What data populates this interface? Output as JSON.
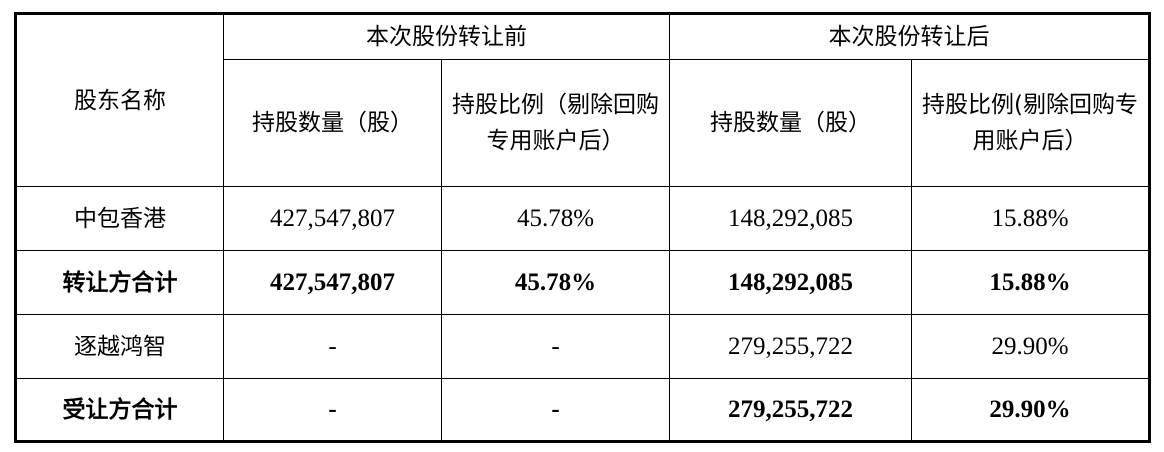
{
  "table": {
    "col_name_header": "股东名称",
    "group_before": "本次股份转让前",
    "group_after": "本次股份转让后",
    "before_shares_header": "持股数量（股）",
    "before_ratio_header": "持股比例（剔除回购专用账户后）",
    "after_shares_header": "持股数量（股）",
    "after_ratio_header": "持股比例(剔除回购专用账户后）",
    "rows": [
      {
        "name": "中包香港",
        "before_shares": "427,547,807",
        "before_ratio": "45.78%",
        "after_shares": "148,292,085",
        "after_ratio": "15.88%",
        "bold": false
      },
      {
        "name": "转让方合计",
        "before_shares": "427,547,807",
        "before_ratio": "45.78%",
        "after_shares": "148,292,085",
        "after_ratio": "15.88%",
        "bold": true
      },
      {
        "name": "逐越鸿智",
        "before_shares": "-",
        "before_ratio": "-",
        "after_shares": "279,255,722",
        "after_ratio": "29.90%",
        "bold": false
      },
      {
        "name": "受让方合计",
        "before_shares": "-",
        "before_ratio": "-",
        "after_shares": "279,255,722",
        "after_ratio": "29.90%",
        "bold": true
      }
    ]
  }
}
